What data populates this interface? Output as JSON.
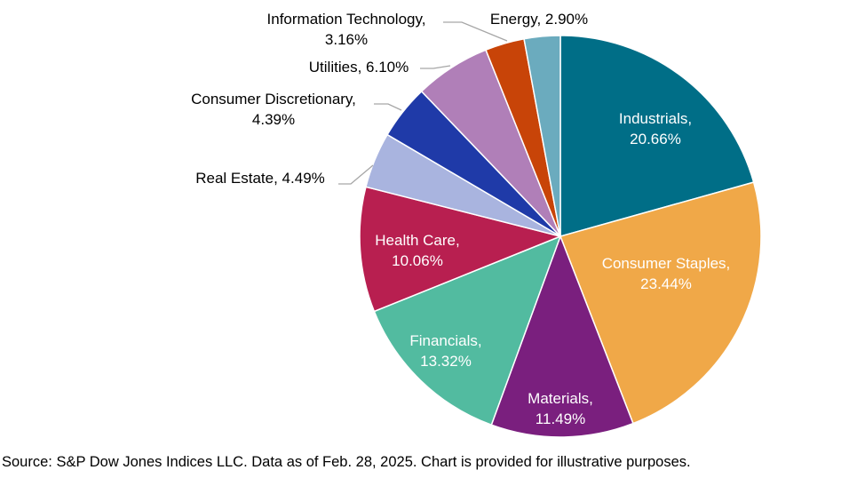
{
  "chart_data": {
    "type": "pie",
    "title": "",
    "start": "top",
    "direction": "clockwise",
    "slices": [
      {
        "label": "Industrials",
        "value": 20.66,
        "display": "20.66%",
        "color": "#006E87"
      },
      {
        "label": "Consumer Staples",
        "value": 23.44,
        "display": "23.44%",
        "color": "#F0A848"
      },
      {
        "label": "Materials",
        "value": 11.49,
        "display": "11.49%",
        "color": "#7A1F7E"
      },
      {
        "label": "Financials",
        "value": 13.32,
        "display": "13.32%",
        "color": "#52BBA0"
      },
      {
        "label": "Health Care",
        "value": 10.06,
        "display": "10.06%",
        "color": "#B81F50"
      },
      {
        "label": "Real Estate",
        "value": 4.49,
        "display": "4.49%",
        "color": "#A9B4DF"
      },
      {
        "label": "Consumer Discretionary",
        "value": 4.39,
        "display": "4.39%",
        "color": "#1F3AA8"
      },
      {
        "label": "Utilities",
        "value": 6.1,
        "display": "6.10%",
        "color": "#B07FB8"
      },
      {
        "label": "Information Technology",
        "value": 3.16,
        "display": "3.16%",
        "color": "#C84408"
      },
      {
        "label": "Energy",
        "value": 2.9,
        "display": "2.90%",
        "color": "#6BABBE"
      }
    ]
  },
  "footer": {
    "source": "Source: S&P Dow Jones Indices LLC.  Data as of Feb. 28, 2025.  Chart is provided for illustrative purposes."
  }
}
